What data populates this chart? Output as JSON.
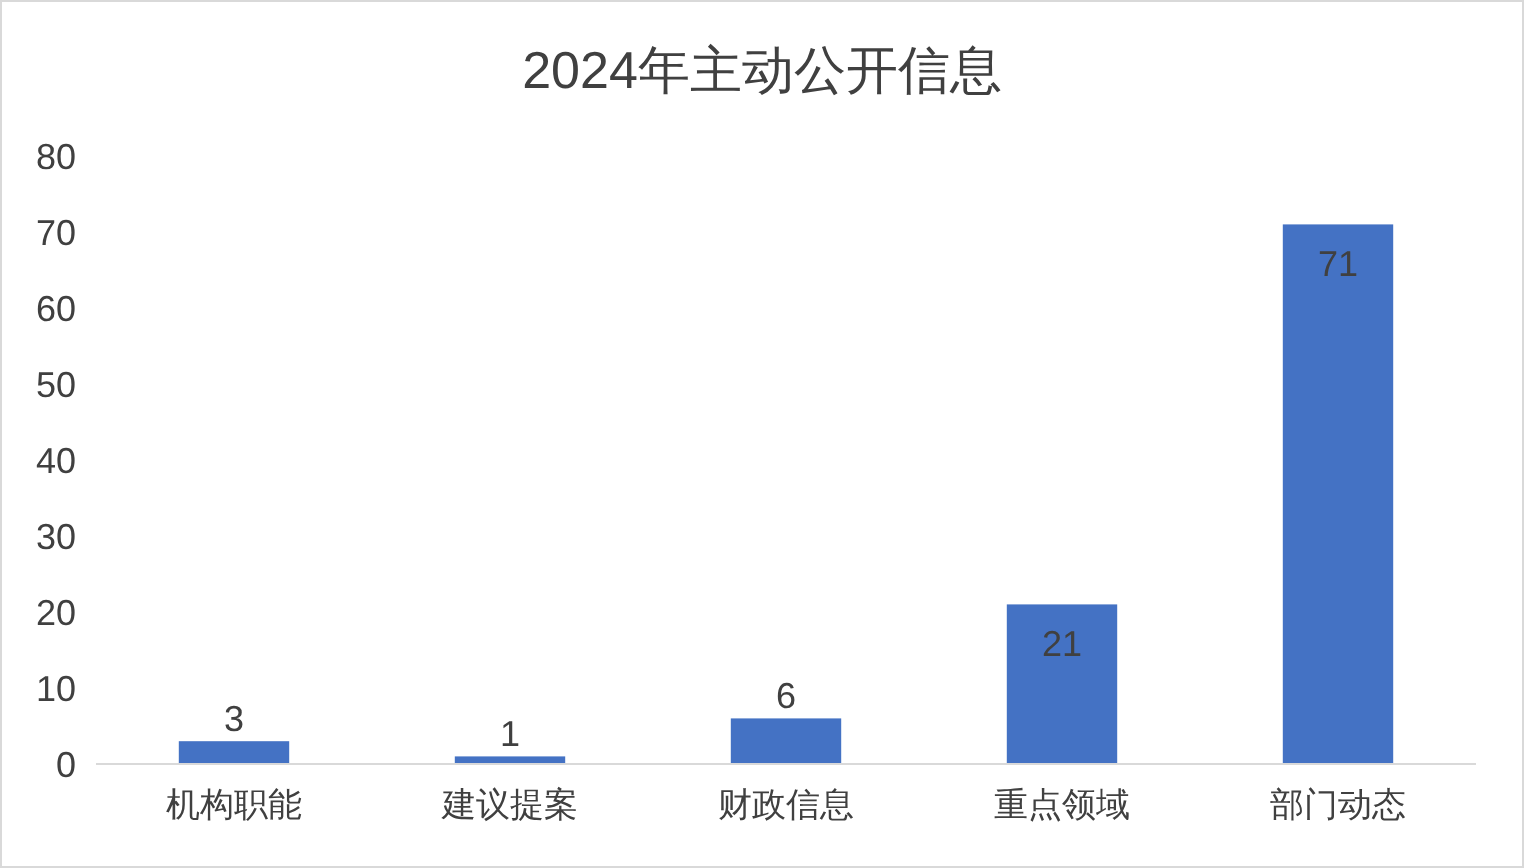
{
  "chart_data": {
    "type": "bar",
    "title": "2024年主动公开信息",
    "categories": [
      "机构职能",
      "建议提案",
      "财政信息",
      "重点领域",
      "部门动态"
    ],
    "values": [
      3,
      1,
      6,
      21,
      71
    ],
    "color": "#4472c4",
    "ylim": [
      0,
      80
    ],
    "yticks": [
      0,
      10,
      20,
      30,
      40,
      50,
      60,
      70,
      80
    ],
    "grid": false,
    "data_labels": true
  }
}
